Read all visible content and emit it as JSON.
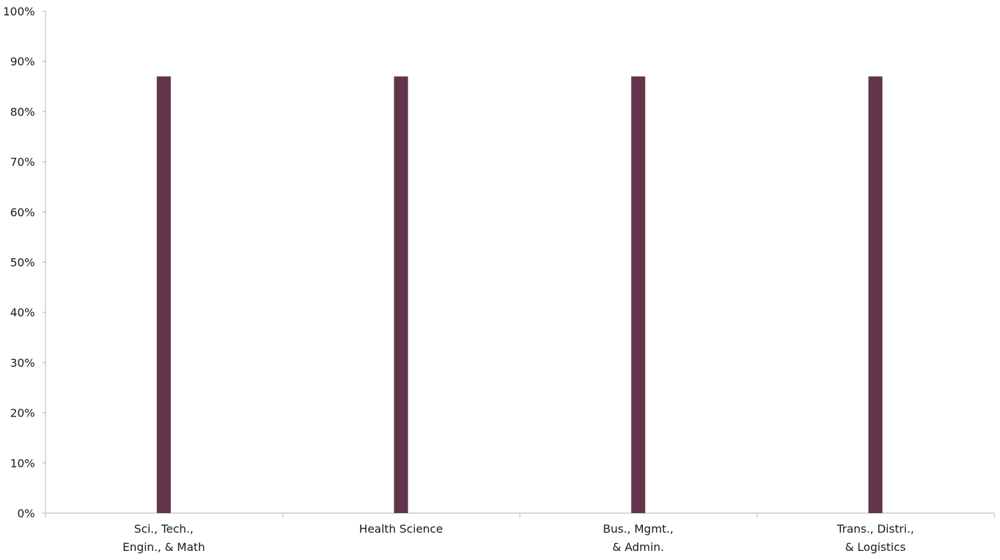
{
  "chart_data": {
    "type": "bar",
    "categories": [
      [
        "Sci., Tech.,",
        "Engin., & Math"
      ],
      [
        "Health Science"
      ],
      [
        "Bus., Mgmt.,",
        "& Admin."
      ],
      [
        "Trans., Distri.,",
        "& Logistics"
      ]
    ],
    "values": [
      87,
      87,
      87,
      87
    ],
    "ylim": [
      0,
      100
    ],
    "yticks": [
      0,
      10,
      20,
      30,
      40,
      50,
      60,
      70,
      80,
      90,
      100
    ],
    "ytick_labels": [
      "0%",
      "10%",
      "20%",
      "30%",
      "40%",
      "50%",
      "60%",
      "70%",
      "80%",
      "90%",
      "100%"
    ],
    "grid": false,
    "colors": {
      "bar": "#63354a",
      "axis": "#bfbfbf",
      "text": "#1a1a1a"
    }
  }
}
